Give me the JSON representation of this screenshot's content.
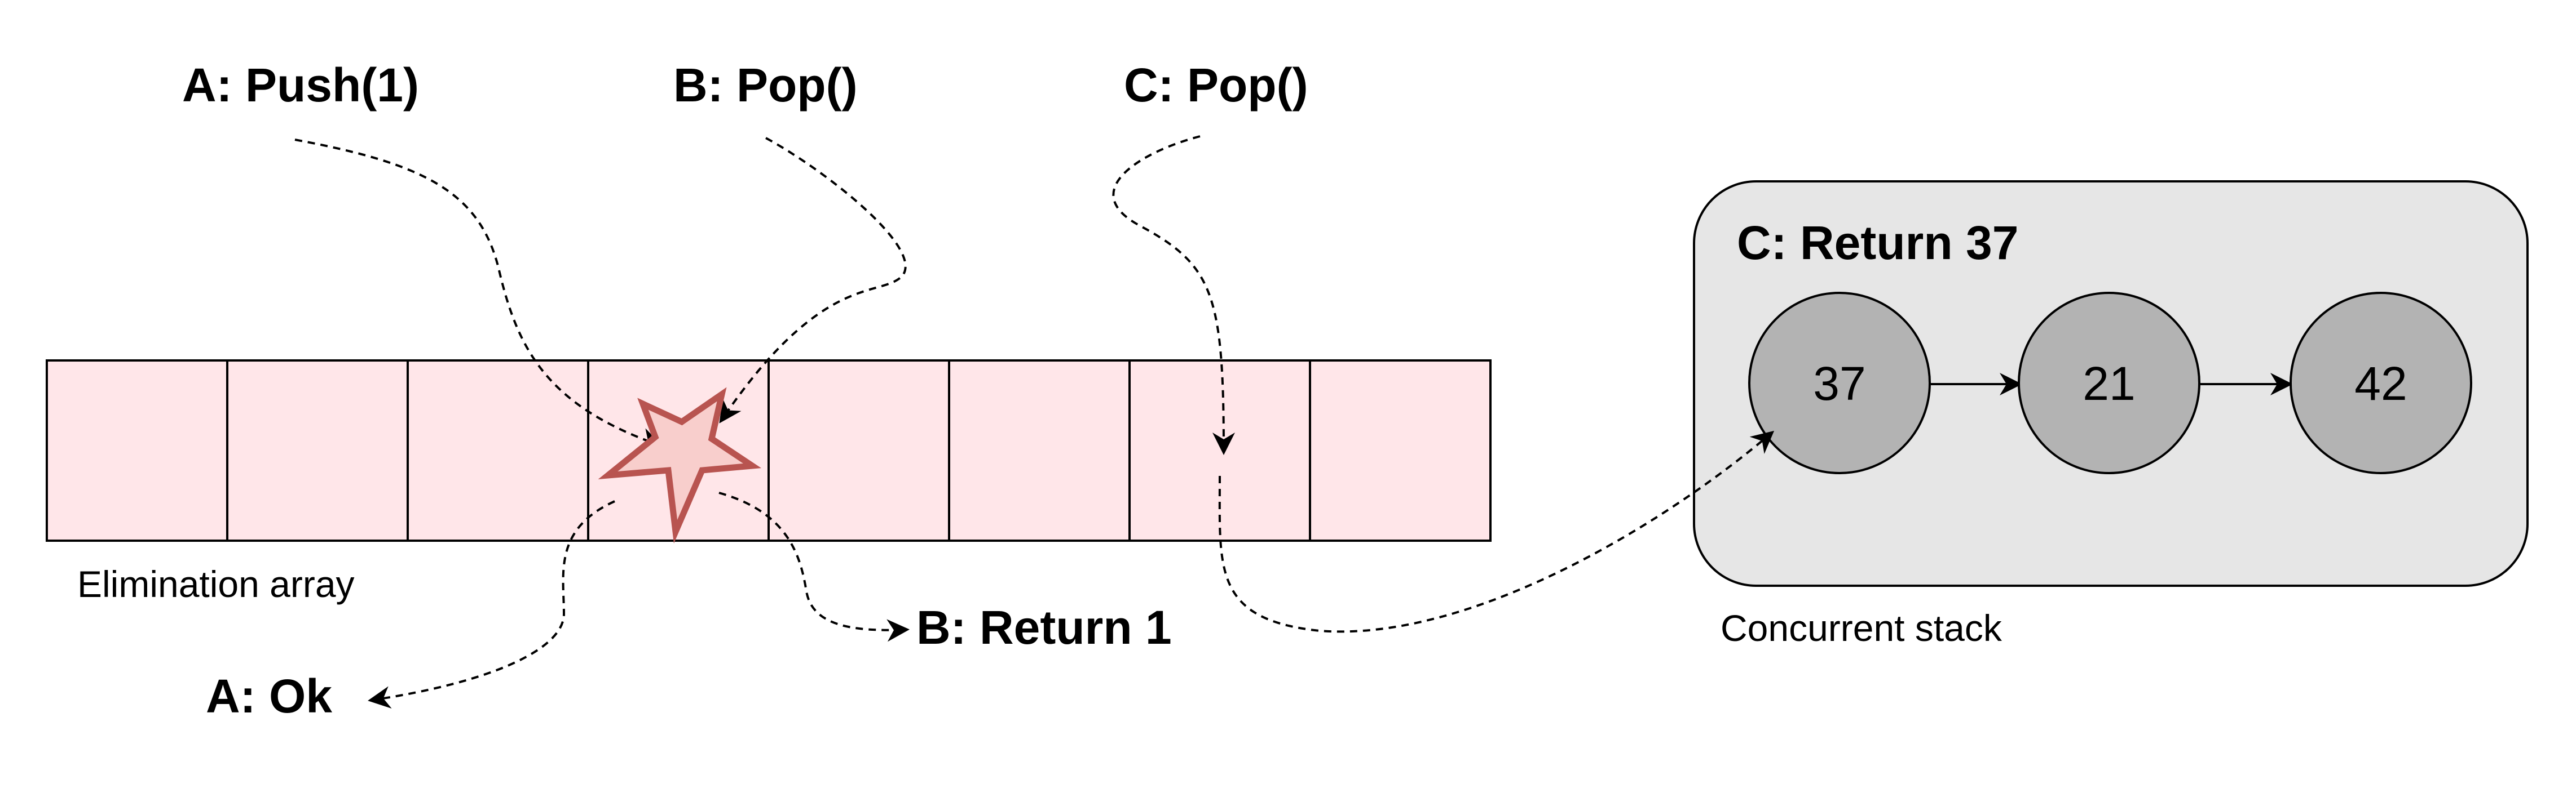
{
  "operations": {
    "a_push": "A: Push(1)",
    "b_pop": "B: Pop()",
    "c_pop": "C: Pop()",
    "a_ok": "A: Ok",
    "b_return": "B: Return 1"
  },
  "elimination_array": {
    "label": "Elimination array",
    "cell_count": 8,
    "cell_fill": "#ffe6e9",
    "collision_cell_index": 3
  },
  "collision_marker": {
    "shape": "star-icon",
    "fill": "#f8cecc",
    "stroke": "#b85450"
  },
  "concurrent_stack": {
    "label": "Concurrent stack",
    "title": "C: Return 37",
    "container_fill": "#e6e6e6",
    "node_fill": "#b3b3b3",
    "nodes": [
      "37",
      "21",
      "42"
    ]
  }
}
